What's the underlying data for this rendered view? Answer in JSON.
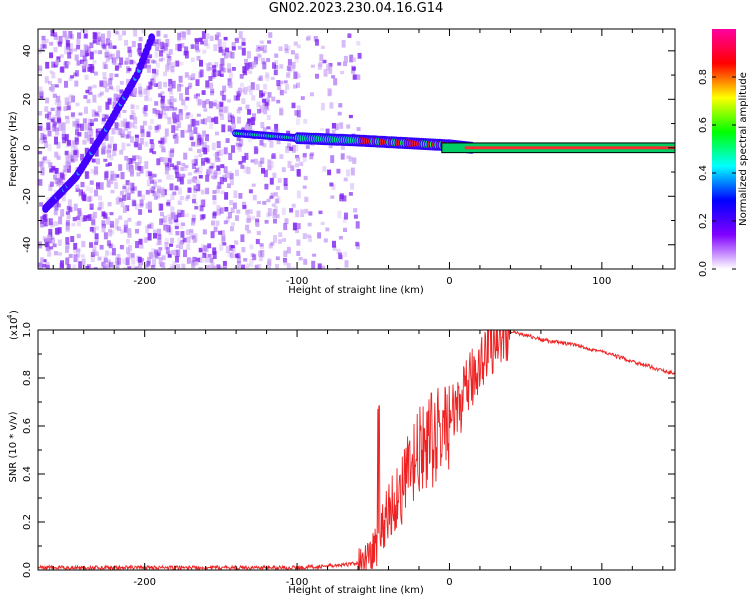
{
  "page": {
    "title": "GN02.2023.230.04.16.G14"
  },
  "chart_data": [
    {
      "type": "heatmap",
      "xlabel": "Height of straight line (km)",
      "ylabel": "Frequency (Hz)",
      "xlim": [
        -270,
        148
      ],
      "ylim": [
        -50,
        49
      ],
      "xticks": [
        -200,
        -100,
        0,
        100
      ],
      "yticks": [
        -40,
        -20,
        0,
        20,
        40
      ],
      "colorbar": {
        "label": "Normalized spectral amplitude",
        "range": [
          0.0,
          1.0
        ],
        "ticks": [
          "0.0",
          "0.2",
          "0.4",
          "0.6",
          "0.8"
        ],
        "colors": [
          "#ffffff",
          "#8000ff",
          "#0000ff",
          "#00ffff",
          "#00ff00",
          "#ffff00",
          "#ff0000",
          "#ff00a0"
        ]
      },
      "features": [
        {
          "name": "rising track",
          "x": [
            -265,
            -245,
            -225,
            -205,
            -195
          ],
          "y": [
            -25,
            -12,
            8,
            30,
            46
          ]
        },
        {
          "name": "near-zero track",
          "x": [
            -140,
            -100,
            -60,
            -30,
            0,
            15,
            148
          ],
          "y": [
            6,
            4,
            3,
            2,
            1,
            0,
            0
          ]
        }
      ]
    },
    {
      "type": "line",
      "xlabel": "Height of straight line (km)",
      "ylabel": "SNR (10 * v/v)",
      "yscale_label": "(x10",
      "yscale_exp": "4",
      "xlim": [
        -270,
        148
      ],
      "ylim": [
        0,
        1.0
      ],
      "xticks": [
        -200,
        -100,
        0,
        100
      ],
      "yticks": [
        "0.0",
        "0.2",
        "0.4",
        "0.6",
        "0.8",
        "1.0"
      ],
      "series": [
        {
          "color": "#ee2222",
          "x": [
            -270,
            -200,
            -100,
            -70,
            -60,
            -55,
            -50,
            -45,
            -40,
            -35,
            -30,
            -25,
            -20,
            -15,
            -10,
            -5,
            0,
            5,
            10,
            15,
            20,
            25,
            30,
            35,
            40,
            50,
            60,
            80,
            100,
            120,
            140,
            148
          ],
          "y": [
            0.01,
            0.01,
            0.01,
            0.02,
            0.03,
            0.05,
            0.08,
            0.15,
            0.25,
            0.3,
            0.35,
            0.42,
            0.48,
            0.52,
            0.55,
            0.58,
            0.62,
            0.67,
            0.73,
            0.8,
            0.87,
            0.92,
            0.96,
            0.98,
            0.99,
            0.98,
            0.96,
            0.94,
            0.91,
            0.87,
            0.83,
            0.82
          ]
        }
      ]
    }
  ]
}
